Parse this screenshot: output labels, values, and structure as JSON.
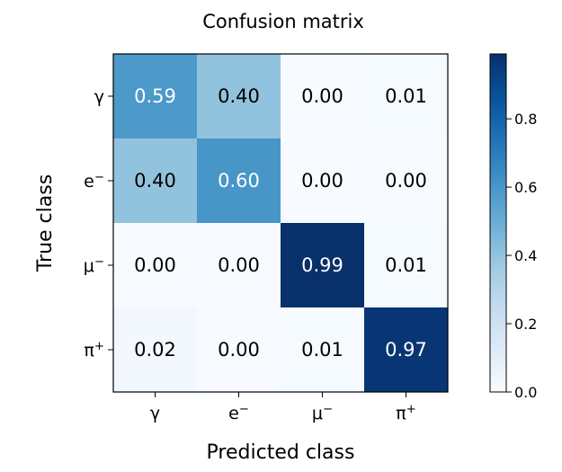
{
  "chart_data": {
    "type": "heatmap",
    "title": "Confusion matrix",
    "xlabel": "Predicted class",
    "ylabel": "True class",
    "x_categories": [
      "γ",
      "e⁻",
      "μ⁻",
      "π⁺"
    ],
    "y_categories": [
      "γ",
      "e⁻",
      "μ⁻",
      "π⁺"
    ],
    "values": [
      [
        0.59,
        0.4,
        0.0,
        0.01
      ],
      [
        0.4,
        0.6,
        0.0,
        0.0
      ],
      [
        0.0,
        0.0,
        0.99,
        0.01
      ],
      [
        0.02,
        0.0,
        0.01,
        0.97
      ]
    ],
    "value_labels": [
      [
        "0.59",
        "0.40",
        "0.00",
        "0.01"
      ],
      [
        "0.40",
        "0.60",
        "0.00",
        "0.00"
      ],
      [
        "0.00",
        "0.00",
        "0.99",
        "0.01"
      ],
      [
        "0.02",
        "0.00",
        "0.01",
        "0.97"
      ]
    ],
    "colormap": "Blues",
    "colorbar": {
      "range": [
        0.0,
        0.99
      ],
      "ticks": [
        0.0,
        0.2,
        0.4,
        0.6,
        0.8
      ],
      "tick_labels": [
        "0.0",
        "0.2",
        "0.4",
        "0.6",
        "0.8"
      ]
    },
    "grid": false
  }
}
